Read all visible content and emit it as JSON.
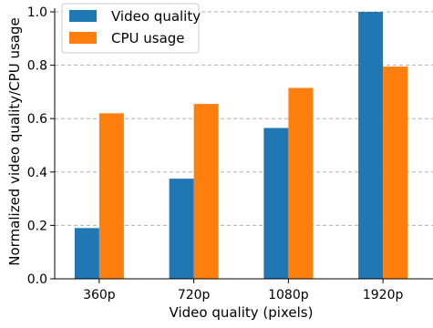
{
  "chart_data": {
    "type": "bar",
    "categories": [
      "360p",
      "720p",
      "1080p",
      "1920p"
    ],
    "series": [
      {
        "name": "Video quality",
        "values": [
          0.19,
          0.375,
          0.565,
          1.0
        ],
        "color": "#1f77b4"
      },
      {
        "name": "CPU usage",
        "values": [
          0.62,
          0.655,
          0.715,
          0.795
        ],
        "color": "#ff7f0e"
      }
    ],
    "yticks": [
      "0.0",
      "0.2",
      "0.4",
      "0.6",
      "0.8",
      "1.0"
    ],
    "ylim": [
      0,
      1.0
    ],
    "xlabel": "Video quality (pixels)",
    "ylabel": "Normalized video quality/CPU usage",
    "grid": "y-dashed",
    "legend_position": "top-left"
  }
}
